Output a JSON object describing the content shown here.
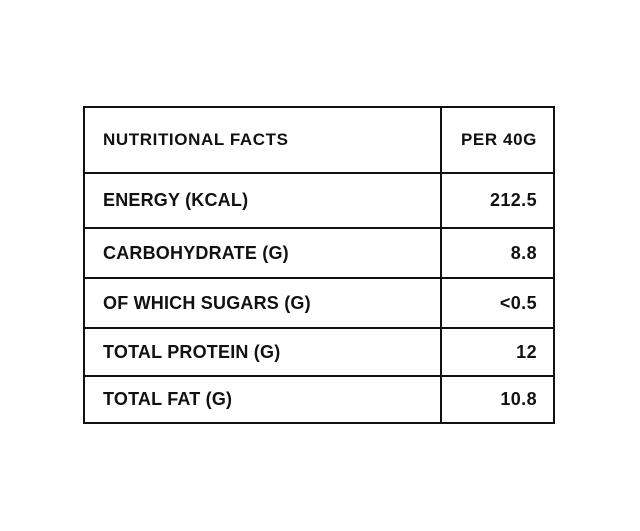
{
  "table": {
    "header": {
      "label": "NUTRITIONAL FACTS",
      "value": "PER 40G"
    },
    "rows": [
      {
        "label": "ENERGY (KCAL)",
        "value": "212.5"
      },
      {
        "label": "CARBOHYDRATE (G)",
        "value": "8.8"
      },
      {
        "label": "OF WHICH SUGARS (G)",
        "value": "<0.5"
      },
      {
        "label": "TOTAL PROTEIN (G)",
        "value": "12"
      },
      {
        "label": "TOTAL FAT (G)",
        "value": "10.8"
      }
    ]
  }
}
